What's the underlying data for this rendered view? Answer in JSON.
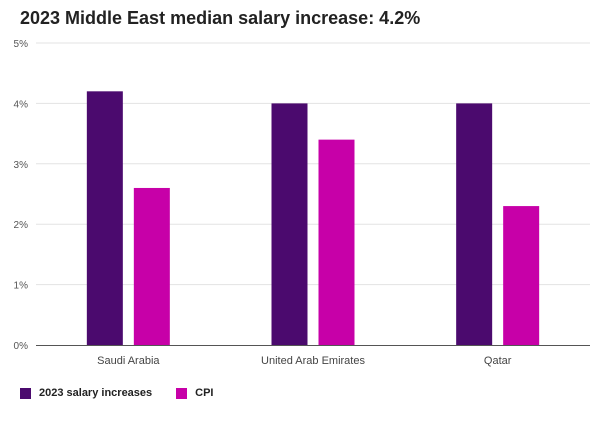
{
  "chart_data": {
    "type": "bar",
    "title": "2023 Middle East median salary increase: 4.2%",
    "categories": [
      "Saudi Arabia",
      "United Arab Emirates",
      "Qatar"
    ],
    "series": [
      {
        "name": "2023 salary increases",
        "color": "#4b0a6e",
        "values": [
          4.2,
          4.0,
          4.0
        ]
      },
      {
        "name": "CPI",
        "color": "#c700a8",
        "values": [
          2.6,
          3.4,
          2.3
        ]
      }
    ],
    "ylim": [
      0,
      5
    ],
    "yticks": [
      0,
      1,
      2,
      3,
      4,
      5
    ],
    "ytick_labels": [
      "0%",
      "1%",
      "2%",
      "3%",
      "4%",
      "5%"
    ],
    "xlabel": "",
    "ylabel": "",
    "grid": true,
    "legend_position": "bottom-left"
  }
}
